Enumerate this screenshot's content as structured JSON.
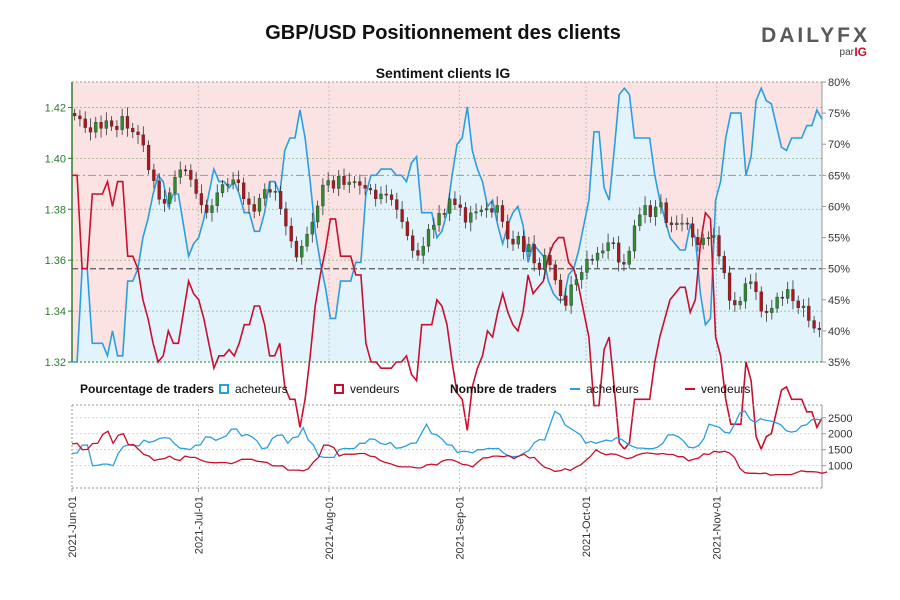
{
  "title": "GBP/USD Positionnement des clients",
  "logo": {
    "brand": "DAILYFX",
    "by": "par",
    "parent": "IG"
  },
  "legend": {
    "pct_title": "Pourcentage de traders",
    "buyers": "acheteurs",
    "sellers": "vendeurs",
    "count_title": "Nombre de traders",
    "buyers2": "acheteurs",
    "sellers2": "vendeurs"
  },
  "colors": {
    "price_up": "#2e8b2e",
    "price_down": "#b0141c",
    "buyers": "#2a9fe0",
    "sellers": "#c8102e",
    "buyers_fill": "#e3f3fb",
    "sellers_fill": "#fbe3e3",
    "axis_price": "#2e7d2e"
  },
  "chart_data": [
    {
      "type": "candlestick+line",
      "title": "Sentiment clients IG",
      "ylim": [
        1.32,
        1.43
      ],
      "y_ticks": [
        "1.32",
        "1.34",
        "1.36",
        "1.38",
        "1.40",
        "1.42"
      ],
      "y2lim": [
        35,
        80
      ],
      "y2_ticks": [
        "35%",
        "40%",
        "45%",
        "50%",
        "55%",
        "60%",
        "65%",
        "70%",
        "75%",
        "80%"
      ],
      "price_close": [
        1.4167,
        1.4155,
        1.4121,
        1.4103,
        1.4142,
        1.4118,
        1.4148,
        1.4126,
        1.4113,
        1.4165,
        1.4118,
        1.4104,
        1.4093,
        1.4052,
        1.3955,
        1.3912,
        1.3839,
        1.3823,
        1.3865,
        1.3926,
        1.3955,
        1.3953,
        1.3917,
        1.3862,
        1.3817,
        1.3787,
        1.3814,
        1.3865,
        1.3897,
        1.3899,
        1.3916,
        1.3904,
        1.3841,
        1.3819,
        1.3792,
        1.3843,
        1.3878,
        1.3867,
        1.3871,
        1.3802,
        1.3734,
        1.3675,
        1.3612,
        1.3655,
        1.3702,
        1.375,
        1.3813,
        1.3895,
        1.3913,
        1.3882,
        1.393,
        1.3897,
        1.3907,
        1.3909,
        1.3894,
        1.3882,
        1.3876,
        1.3841,
        1.386,
        1.3857,
        1.3838,
        1.3799,
        1.3751,
        1.3696,
        1.3638,
        1.3619,
        1.3655,
        1.3721,
        1.3738,
        1.3784,
        1.3784,
        1.3841,
        1.3818,
        1.3807,
        1.3749,
        1.3786,
        1.379,
        1.3797,
        1.3803,
        1.3788,
        1.3815,
        1.3752,
        1.3683,
        1.3663,
        1.3694,
        1.3633,
        1.3662,
        1.3589,
        1.3563,
        1.3619,
        1.3582,
        1.3522,
        1.346,
        1.3422,
        1.3503,
        1.3524,
        1.3552,
        1.3604,
        1.36,
        1.3628,
        1.3637,
        1.3669,
        1.3668,
        1.3592,
        1.3584,
        1.3636,
        1.3735,
        1.3778,
        1.3815,
        1.3771,
        1.3809,
        1.3826,
        1.3747,
        1.3739,
        1.3746,
        1.3746,
        1.3743,
        1.369,
        1.3661,
        1.3687,
        1.3689,
        1.3697,
        1.3616,
        1.355,
        1.3442,
        1.3424,
        1.3439,
        1.3508,
        1.3515,
        1.3476,
        1.3399,
        1.3394,
        1.3411,
        1.3455,
        1.345,
        1.3485,
        1.344,
        1.3413,
        1.342,
        1.3363,
        1.3333,
        1.3327
      ],
      "pct_buyers": [
        35.0,
        35.0,
        50.0,
        50.0,
        38.0,
        38.0,
        38.0,
        36.0,
        40.0,
        36.0,
        36.0,
        48.0,
        48.0,
        50.0,
        55.0,
        58.0,
        62.0,
        65.0,
        64.0,
        60.0,
        62.0,
        62.0,
        57.0,
        52.0,
        54.0,
        55.0,
        58.0,
        62.0,
        66.0,
        64.0,
        64.0,
        63.0,
        64.0,
        62.0,
        59.0,
        59.0,
        56.0,
        56.0,
        59.0,
        64.0,
        64.0,
        62.0,
        69.0,
        71.0,
        71.0,
        75.5,
        71.0,
        64.0,
        56.0,
        51.0,
        47.0,
        42.0,
        42.0,
        48.0,
        48.0,
        48.0,
        51.0,
        51.0,
        62.0,
        65.0,
        65.0,
        66.0,
        66.0,
        66.0,
        65.0,
        65.0,
        64.0,
        67.0,
        68.0,
        59.0,
        59.0,
        59.0,
        55.0,
        56.0,
        59.0,
        65.0,
        70.0,
        71.0,
        76.0,
        69.0,
        66.0,
        64.0,
        60.0,
        61.0,
        57.0,
        54.0,
        57.0,
        59.0,
        60.0,
        57.0,
        51.0,
        54.0,
        53.0,
        52.0,
        48.0,
        46.0,
        45.0,
        45.0,
        49.0,
        50.0,
        53.0,
        57.0,
        61.0,
        72.0,
        72.0,
        63.0,
        61.0,
        69.0,
        78.0,
        79.0,
        78.0,
        71.0,
        71.0,
        71.0,
        71.0,
        65.0,
        61.0,
        58.0,
        55.0,
        54.0,
        53.0,
        53.0,
        57.0,
        55.0,
        46.0,
        41.0,
        42.0,
        61.0,
        64.0,
        71.0,
        75.0,
        75.0,
        75.0,
        65.0,
        68.0,
        77.0,
        79.0,
        77.0,
        76.5,
        73.0,
        69.5,
        69.0,
        71.0,
        71.0,
        71.0,
        73.0,
        73.0,
        75.5,
        74.0
      ],
      "pct_sellers": [
        65.0,
        65.0,
        50.0,
        50.0,
        62.0,
        62.0,
        62.0,
        64.0,
        60.0,
        64.0,
        64.0,
        52.0,
        52.0,
        50.0,
        45.0,
        42.0,
        38.0,
        35.0,
        36.0,
        40.0,
        38.0,
        38.0,
        43.0,
        48.0,
        46.0,
        45.0,
        42.0,
        38.0,
        34.0,
        36.0,
        36.0,
        37.0,
        36.0,
        38.0,
        41.0,
        41.0,
        44.0,
        44.0,
        41.0,
        36.0,
        36.0,
        38.0,
        31.0,
        29.0,
        29.0,
        24.5,
        29.0,
        36.0,
        44.0,
        49.0,
        53.0,
        58.0,
        58.0,
        52.0,
        52.0,
        52.0,
        49.0,
        49.0,
        38.0,
        35.0,
        35.0,
        34.0,
        34.0,
        34.0,
        35.0,
        35.0,
        36.0,
        33.0,
        32.0,
        41.0,
        41.0,
        41.0,
        45.0,
        44.0,
        41.0,
        35.0,
        30.0,
        29.0,
        24.0,
        31.0,
        34.0,
        36.0,
        40.0,
        39.0,
        43.0,
        46.0,
        43.0,
        41.0,
        40.0,
        43.0,
        49.0,
        46.0,
        47.0,
        48.0,
        52.0,
        54.0,
        55.0,
        55.0,
        51.0,
        50.0,
        47.0,
        43.0,
        39.0,
        28.0,
        28.0,
        37.0,
        39.0,
        31.0,
        22.0,
        21.0,
        22.0,
        29.0,
        29.0,
        29.0,
        29.0,
        35.0,
        39.0,
        42.0,
        45.0,
        46.0,
        47.0,
        47.0,
        43.0,
        45.0,
        54.0,
        59.0,
        58.0,
        39.0,
        36.0,
        29.0,
        25.0,
        25.0,
        25.0,
        35.0,
        32.0,
        23.0,
        21.0,
        23.0,
        23.5,
        27.0,
        30.5,
        31.0,
        29.0,
        29.0,
        29.0,
        27.0,
        27.0,
        24.5,
        26.0
      ],
      "x_ticks": [
        "2021-Jun-01",
        "2021-Jul-01",
        "2021-Aug-01",
        "2021-Sep-01",
        "2021-Oct-01",
        "2021-Nov-01"
      ],
      "x_tick_index": [
        0,
        30,
        61,
        92,
        122,
        153
      ],
      "n_days": 179
    },
    {
      "type": "line",
      "ylim": [
        300,
        2900
      ],
      "y_ticks": [
        "1000",
        "1500",
        "2000",
        "2500"
      ],
      "buyers_count": [
        1380,
        1400,
        1640,
        1650,
        1000,
        1010,
        1050,
        1050,
        1000,
        1380,
        1600,
        1650,
        1630,
        1620,
        1800,
        1730,
        1770,
        1850,
        1880,
        1860,
        1680,
        1550,
        1530,
        1500,
        1640,
        1650,
        1900,
        1890,
        1790,
        1860,
        1930,
        2140,
        2150,
        1930,
        1980,
        1910,
        1780,
        1530,
        1560,
        1850,
        1950,
        1960,
        1700,
        1880,
        1900,
        2190,
        1800,
        1650,
        1300,
        1260,
        1260,
        1260,
        1500,
        1540,
        1530,
        1540,
        1700,
        1700,
        1840,
        1820,
        1700,
        1660,
        1730,
        1550,
        1560,
        1620,
        1700,
        1710,
        2000,
        2300,
        2000,
        1970,
        1840,
        1660,
        1640,
        1410,
        1450,
        1440,
        1400,
        1500,
        1500,
        1540,
        1530,
        1540,
        1400,
        1300,
        1280,
        1300,
        1400,
        1480,
        1720,
        1820,
        1800,
        2250,
        2700,
        2600,
        2270,
        2170,
        2070,
        1960,
        1700,
        1760,
        1700,
        1750,
        1800,
        1770,
        1880,
        1820,
        1700,
        1610,
        1550,
        1550,
        1530,
        1530,
        1580,
        1700,
        1960,
        1970,
        1910,
        1780,
        1580,
        1560,
        1630,
        1840,
        2300,
        2250,
        2200,
        2050,
        2020,
        2300,
        2650,
        2710,
        2450,
        2350,
        2470,
        2420,
        2400,
        2350,
        2280,
        2100,
        2050,
        2080,
        2250,
        2280,
        2440,
        2450,
        2430
      ],
      "sellers_count": [
        1680,
        1700,
        1500,
        1510,
        1690,
        1700,
        1980,
        2080,
        1700,
        1950,
        2000,
        1650,
        1660,
        1500,
        1350,
        1300,
        1160,
        1200,
        1220,
        1300,
        1200,
        1160,
        1300,
        1260,
        1260,
        1180,
        1120,
        1100,
        1090,
        1100,
        1100,
        1060,
        1120,
        1200,
        1200,
        1200,
        1140,
        1120,
        1100,
        1000,
        990,
        1000,
        860,
        860,
        860,
        840,
        900,
        1110,
        1260,
        1640,
        1640,
        1560,
        1300,
        1360,
        1360,
        1360,
        1380,
        1380,
        1300,
        1280,
        1160,
        1100,
        1060,
        1000,
        960,
        960,
        960,
        930,
        930,
        1020,
        1050,
        1020,
        1140,
        1190,
        1180,
        1120,
        1040,
        1020,
        960,
        1110,
        1240,
        1250,
        1300,
        1300,
        1280,
        1320,
        1220,
        1300,
        1360,
        1240,
        1260,
        1090,
        950,
        900,
        820,
        840,
        900,
        850,
        950,
        1020,
        1160,
        1300,
        1500,
        1400,
        1340,
        1370,
        1350,
        1280,
        1220,
        1250,
        1330,
        1380,
        1400,
        1380,
        1360,
        1380,
        1350,
        1350,
        1280,
        1280,
        1150,
        1200,
        1240,
        1370,
        1350,
        1450,
        1420,
        1450,
        1400,
        1250,
        920,
        780,
        760,
        760,
        750,
        770,
        700,
        720,
        720,
        720,
        720,
        780,
        840,
        810,
        810,
        800,
        760,
        800
      ]
    }
  ]
}
